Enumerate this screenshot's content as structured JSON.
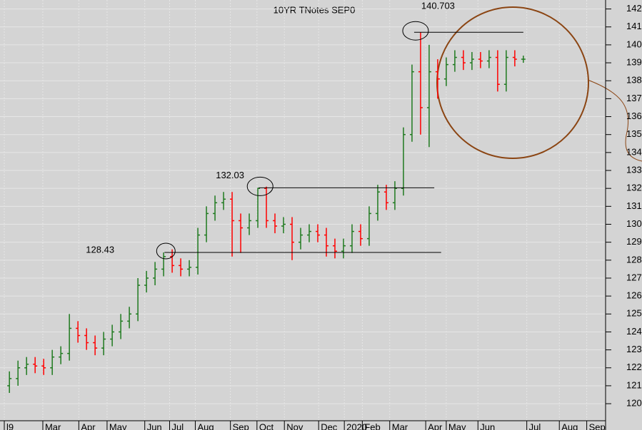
{
  "chart_data": {
    "type": "ohlc",
    "title": "10YR TNotes SEP0",
    "up_color": "#1f7a1f",
    "down_color": "#ff0000",
    "grid": true,
    "open": [
      121.0,
      121.4,
      122.0,
      122.2,
      122.1,
      122.0,
      122.6,
      122.8,
      124.2,
      123.8,
      123.4,
      123.1,
      123.6,
      124.0,
      124.6,
      125.0,
      126.6,
      127.0,
      127.5,
      128.2,
      127.7,
      127.5,
      127.6,
      129.4,
      130.6,
      131.2,
      131.4,
      130.2,
      129.8,
      130.2,
      132.0,
      130.2,
      129.9,
      130.0,
      129.0,
      129.4,
      129.6,
      129.4,
      128.8,
      128.5,
      128.8,
      129.6,
      129.2,
      130.6,
      131.8,
      131.2,
      132.0,
      135.0,
      138.5,
      136.5,
      138.5,
      138.1,
      138.9,
      139.3,
      139.0,
      139.2,
      139.1,
      139.3,
      137.8,
      139.3,
      139.2
    ],
    "high": [
      121.8,
      122.4,
      122.6,
      122.6,
      122.5,
      123.0,
      123.2,
      125.0,
      124.6,
      124.2,
      123.8,
      124.0,
      124.4,
      125.0,
      125.4,
      127.0,
      127.4,
      127.9,
      128.43,
      128.6,
      128.1,
      128.0,
      129.8,
      131.0,
      131.6,
      131.8,
      131.8,
      130.6,
      130.6,
      132.03,
      132.1,
      130.6,
      130.4,
      130.4,
      129.8,
      130.0,
      130.0,
      129.8,
      129.2,
      129.2,
      130.0,
      130.0,
      131.0,
      132.2,
      132.2,
      132.4,
      135.4,
      138.9,
      140.703,
      140.0,
      139.2,
      139.3,
      139.7,
      139.7,
      139.6,
      139.6,
      139.7,
      139.7,
      139.7,
      139.7,
      139.4
    ],
    "low": [
      120.6,
      121.0,
      121.6,
      121.7,
      121.6,
      121.6,
      122.2,
      122.4,
      123.4,
      123.0,
      122.7,
      122.7,
      123.2,
      123.6,
      124.2,
      124.6,
      126.2,
      126.6,
      127.1,
      127.3,
      127.1,
      127.1,
      127.2,
      129.0,
      130.2,
      130.8,
      128.2,
      128.4,
      129.4,
      129.8,
      129.8,
      129.5,
      129.5,
      128.0,
      128.6,
      129.0,
      129.0,
      128.2,
      128.1,
      128.1,
      128.4,
      128.8,
      128.8,
      130.2,
      130.8,
      130.8,
      131.6,
      134.6,
      135.0,
      134.3,
      137.0,
      137.7,
      138.5,
      138.6,
      138.6,
      138.7,
      138.7,
      137.4,
      137.4,
      138.8,
      139.0
    ],
    "close": [
      121.4,
      122.0,
      122.2,
      122.1,
      122.0,
      122.6,
      122.8,
      124.2,
      123.8,
      123.4,
      123.1,
      123.6,
      124.0,
      124.6,
      125.0,
      126.6,
      127.0,
      127.5,
      128.2,
      127.7,
      127.5,
      127.6,
      129.4,
      130.6,
      131.2,
      131.4,
      130.2,
      129.8,
      130.2,
      132.0,
      130.2,
      129.9,
      130.0,
      129.0,
      129.4,
      129.6,
      129.4,
      128.8,
      128.5,
      128.8,
      129.6,
      129.2,
      130.6,
      131.8,
      131.2,
      132.0,
      135.0,
      138.5,
      136.5,
      138.5,
      138.1,
      138.9,
      139.3,
      139.0,
      139.2,
      139.1,
      139.3,
      137.8,
      139.3,
      139.2,
      139.2
    ],
    "xlim": [
      -1.1,
      69.6
    ],
    "xticks": [
      {
        "value": -0.6,
        "label": "l9"
      },
      {
        "value": 3.9,
        "label": "Mar"
      },
      {
        "value": 8.1,
        "label": "Apr"
      },
      {
        "value": 11.4,
        "label": "May"
      },
      {
        "value": 15.8,
        "label": "Jun"
      },
      {
        "value": 18.7,
        "label": "Jul"
      },
      {
        "value": 21.7,
        "label": "Aug"
      },
      {
        "value": 25.8,
        "label": "Sep"
      },
      {
        "value": 28.9,
        "label": "Oct"
      },
      {
        "value": 32.1,
        "label": "Nov"
      },
      {
        "value": 36.1,
        "label": "Dec"
      },
      {
        "value": 39.1,
        "label": "2020"
      },
      {
        "value": 41.2,
        "label": "Feb"
      },
      {
        "value": 44.4,
        "label": "Mar"
      },
      {
        "value": 48.6,
        "label": "Apr"
      },
      {
        "value": 51.0,
        "label": "May"
      },
      {
        "value": 54.7,
        "label": "Jun"
      },
      {
        "value": 60.4,
        "label": "Jul"
      },
      {
        "value": 64.2,
        "label": "Aug"
      },
      {
        "value": 67.4,
        "label": "Sep"
      }
    ],
    "ylim": [
      119.05,
      142.5
    ],
    "yticks": [
      120,
      121,
      122,
      123,
      124,
      125,
      126,
      127,
      128,
      129,
      130,
      131,
      132,
      133,
      134,
      135,
      136,
      137,
      138,
      139,
      140,
      141,
      142
    ],
    "annotations": [
      {
        "value": 128.43,
        "x_start": 18.1,
        "x_end": 50.4
      },
      {
        "value": 132.03,
        "x_start": 29.1,
        "x_end": 49.6
      },
      {
        "value": 140.703,
        "x_start": 47.25,
        "x_end": 60.0
      }
    ]
  }
}
